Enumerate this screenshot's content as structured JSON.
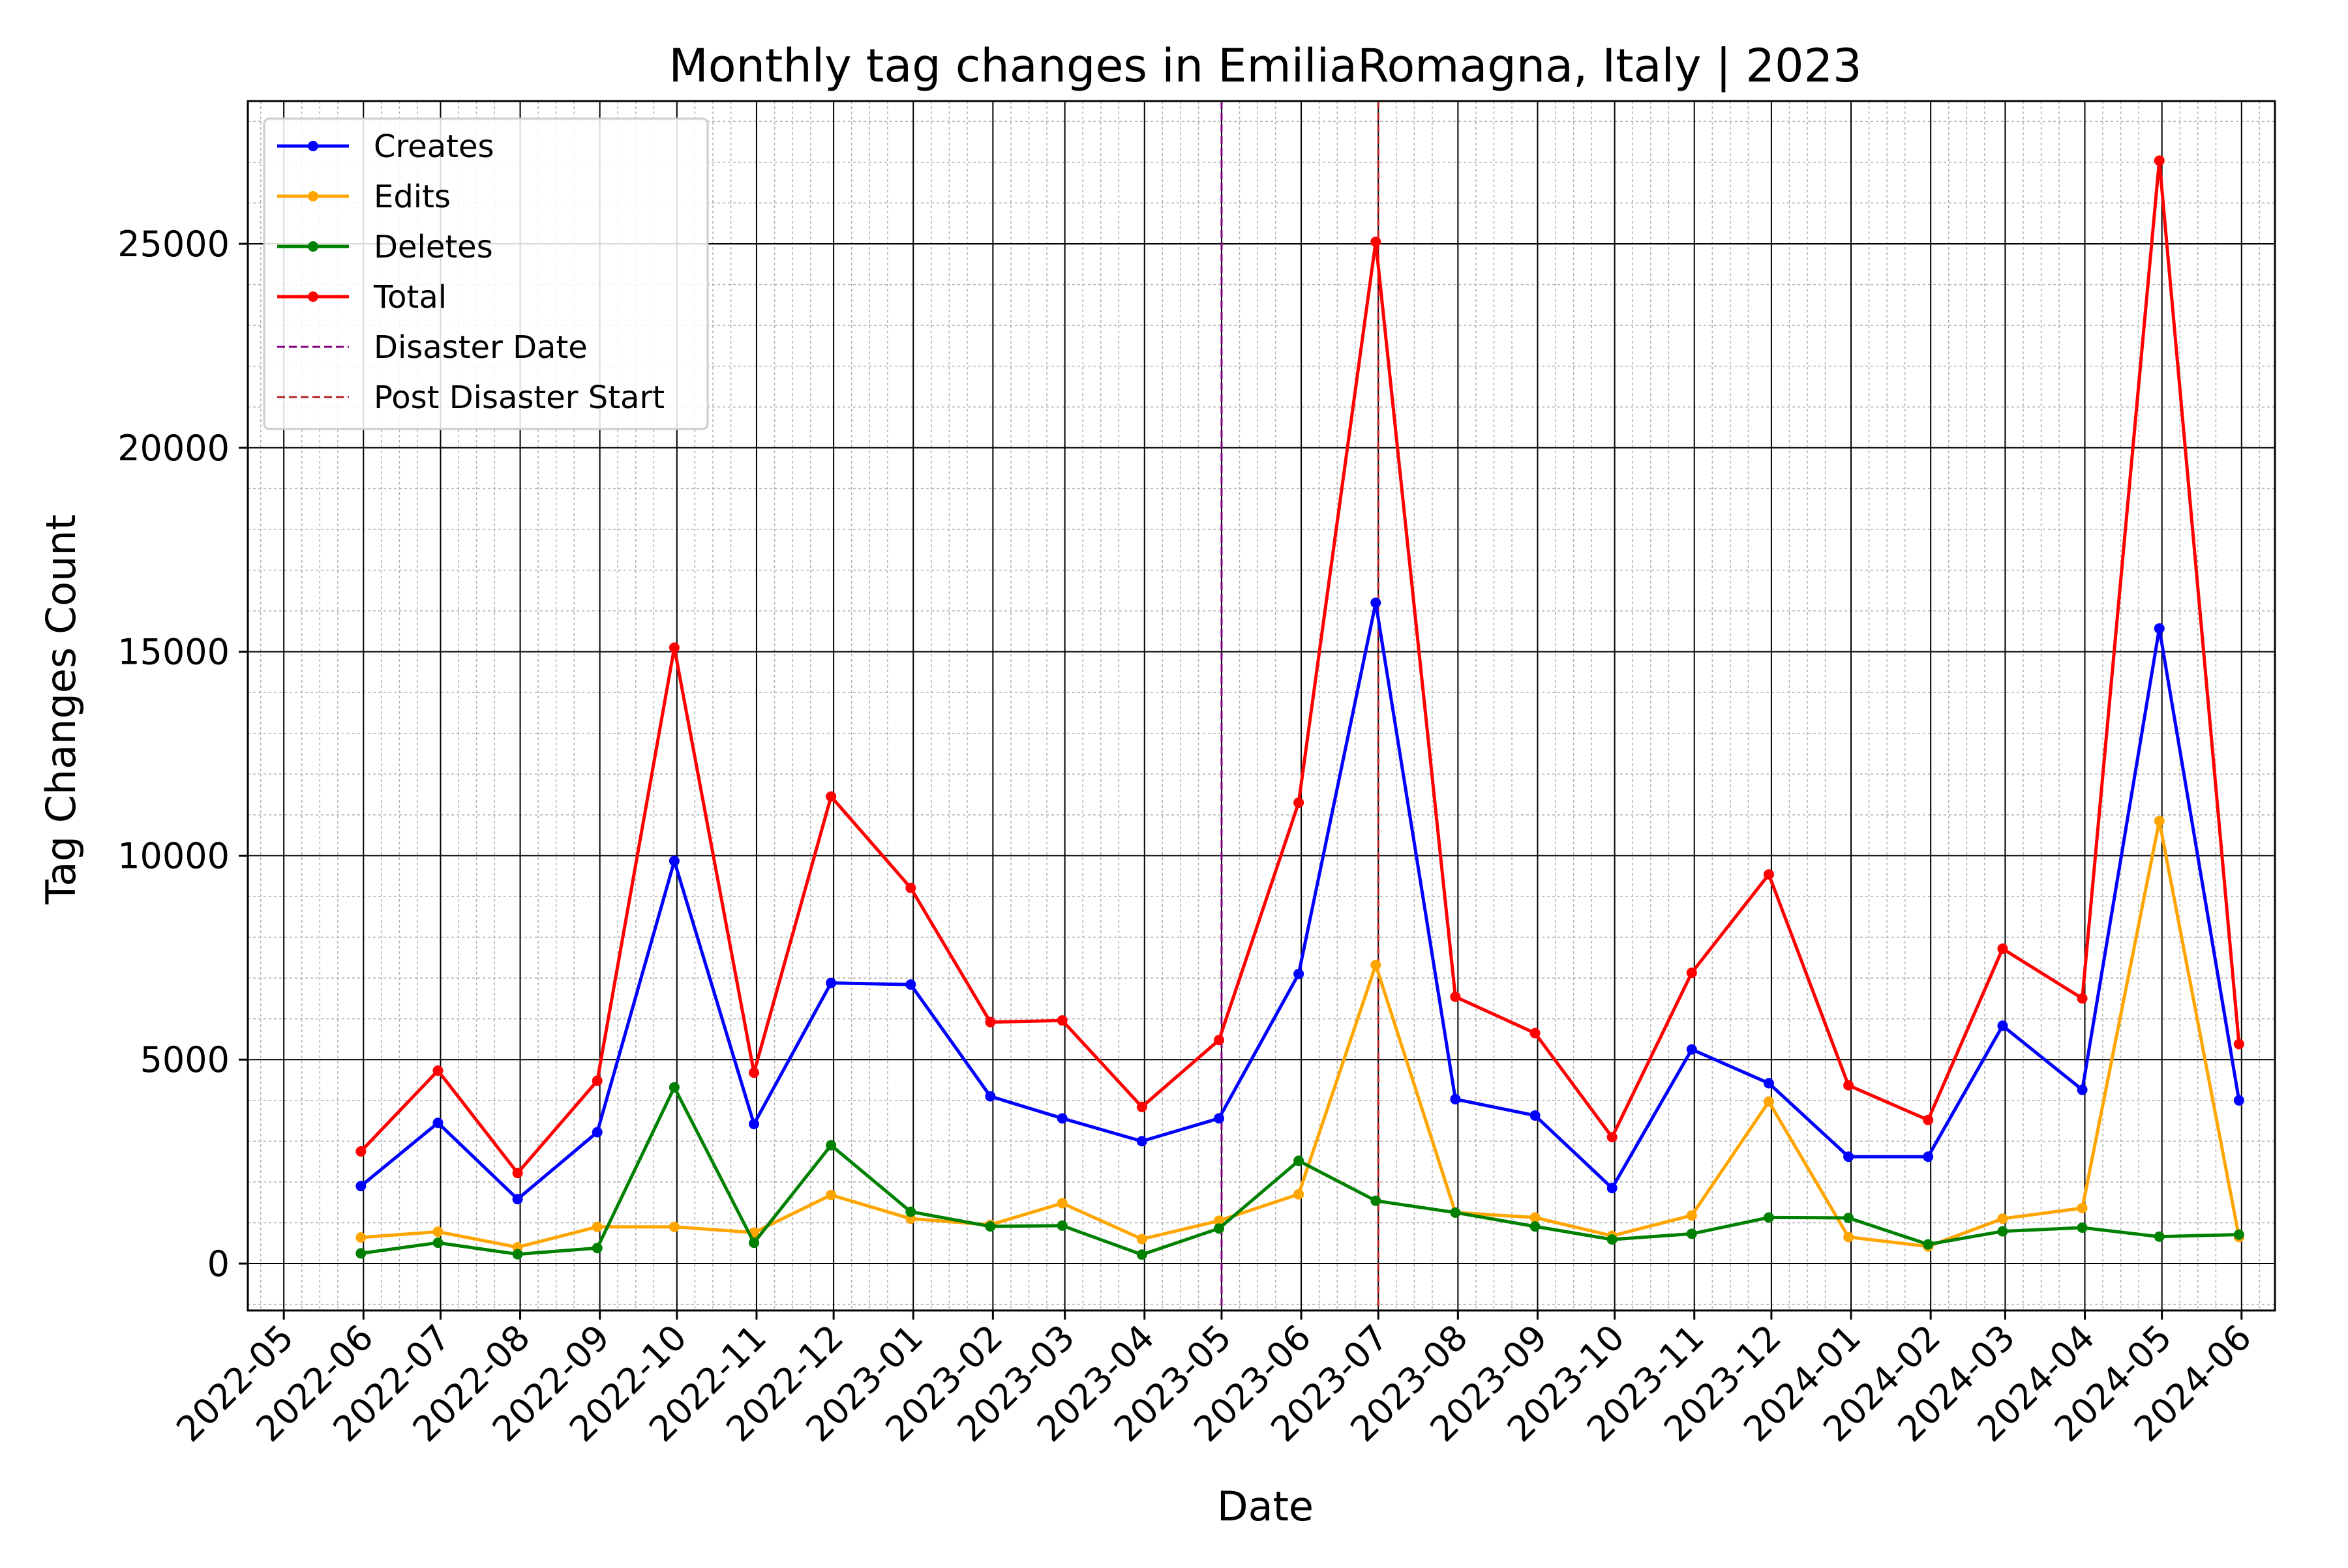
{
  "chart_data": {
    "type": "line",
    "title": "Monthly tag changes in EmiliaRomagna, Italy | 2023",
    "xlabel": "Date",
    "ylabel": "Tag Changes Count",
    "x": [
      "2022-05-31",
      "2022-06-30",
      "2022-07-31",
      "2022-08-31",
      "2022-09-30",
      "2022-10-31",
      "2022-11-30",
      "2022-12-31",
      "2023-01-31",
      "2023-02-28",
      "2023-03-31",
      "2023-04-30",
      "2023-05-31",
      "2023-06-30",
      "2023-07-31",
      "2023-08-31",
      "2023-09-30",
      "2023-10-31",
      "2023-11-30",
      "2023-12-31",
      "2024-01-31",
      "2024-02-29",
      "2024-03-31",
      "2024-04-30",
      "2024-05-31"
    ],
    "xlim": [
      "2022-04-17",
      "2024-06-14"
    ],
    "ylim": [
      -1150,
      28500
    ],
    "x_ticks": [
      "2022-05",
      "2022-06",
      "2022-07",
      "2022-08",
      "2022-09",
      "2022-10",
      "2022-11",
      "2022-12",
      "2023-01",
      "2023-02",
      "2023-03",
      "2023-04",
      "2023-05",
      "2023-06",
      "2023-07",
      "2023-08",
      "2023-09",
      "2023-10",
      "2023-11",
      "2023-12",
      "2024-01",
      "2024-02",
      "2024-03",
      "2024-04",
      "2024-05",
      "2024-06"
    ],
    "y_ticks": [
      0,
      5000,
      10000,
      15000,
      20000,
      25000
    ],
    "y_minor_step": 1000,
    "grid": true,
    "legend": "top-left",
    "series": [
      {
        "name": "Creates",
        "color": "#0000ff",
        "values": [
          1900,
          3450,
          1580,
          3220,
          9870,
          3420,
          6880,
          6840,
          4100,
          3560,
          3000,
          3560,
          7100,
          16200,
          4030,
          3630,
          1850,
          5250,
          4420,
          2620,
          2620,
          5830,
          4260,
          15570,
          4000
        ]
      },
      {
        "name": "Edits",
        "color": "#ffa500",
        "values": [
          640,
          780,
          400,
          900,
          900,
          760,
          1680,
          1100,
          950,
          1480,
          600,
          1050,
          1700,
          7320,
          1250,
          1130,
          680,
          1180,
          3970,
          650,
          420,
          1100,
          1360,
          10850,
          650
        ]
      },
      {
        "name": "Deletes",
        "color": "#008000",
        "values": [
          250,
          510,
          230,
          380,
          4320,
          510,
          2900,
          1270,
          910,
          930,
          220,
          860,
          2520,
          1540,
          1250,
          910,
          590,
          730,
          1130,
          1120,
          470,
          790,
          880,
          660,
          710
        ]
      },
      {
        "name": "Total",
        "color": "#ff0000",
        "values": [
          2750,
          4730,
          2220,
          4480,
          15100,
          4680,
          11450,
          9210,
          5920,
          5960,
          3840,
          5480,
          11300,
          25050,
          6540,
          5650,
          3100,
          7130,
          9540,
          4370,
          3520,
          7720,
          6500,
          27040,
          5380
        ]
      }
    ],
    "vlines": [
      {
        "name": "Disaster Date",
        "x": "2023-05-01",
        "color": "#800080"
      },
      {
        "name": "Post Disaster Start",
        "x": "2023-07-01",
        "color": "#b22222"
      }
    ]
  }
}
